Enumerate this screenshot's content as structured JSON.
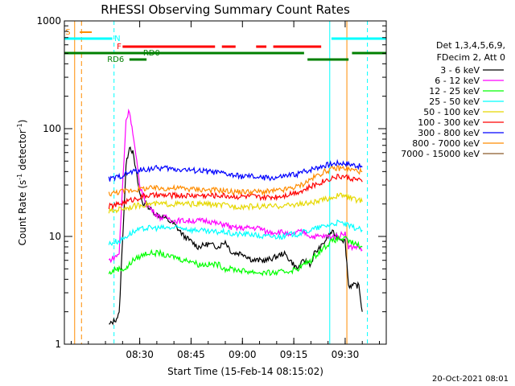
{
  "chart_data": {
    "type": "line",
    "title": "RHESSI Observing Summary Count Rates",
    "xlabel": "Start Time (15-Feb-14 08:15:02)",
    "ylabel_main": "Count Rate (s",
    "ylabel_sup1": "-1",
    "ylabel_mid": " detector",
    "ylabel_sup2": "-1",
    "ylabel_end": ")",
    "yscale": "log",
    "ylim": [
      1,
      1000
    ],
    "xlim_minutes": [
      8.0,
      102.0
    ],
    "x_ticks": [
      {
        "label": "08:30",
        "minutes": 30
      },
      {
        "label": "08:45",
        "minutes": 45
      },
      {
        "label": "09:00",
        "minutes": 60
      },
      {
        "label": "09:15",
        "minutes": 75
      },
      {
        "label": "09:30",
        "minutes": 90
      },
      {
        "label": "09:45",
        "minutes": 105
      }
    ],
    "y_ticks": [
      {
        "label": "1000",
        "value": 1000
      },
      {
        "label": "100",
        "value": 100
      },
      {
        "label": "10",
        "value": 10
      },
      {
        "label": "1",
        "value": 1
      }
    ],
    "legend_header": [
      "Det 1,3,4,5,6,9,",
      "FDecim 2, Att 0"
    ],
    "timestamp": "20-Oct-2021 08:01",
    "flags": {
      "S_label": "S",
      "N_label": "N",
      "F_label": "F",
      "RD0_label": "RD0",
      "RD6_label": "RD6"
    },
    "series": [
      {
        "name": "3 - 6 keV",
        "color": "#000000",
        "x": [
          21,
          23,
          24,
          26,
          27,
          28,
          30,
          31,
          32,
          33,
          35,
          37,
          40,
          43,
          45,
          47,
          50,
          53,
          55,
          57,
          60,
          63,
          65,
          67,
          70,
          72,
          74,
          76,
          78,
          80,
          81,
          83,
          85,
          86,
          88,
          90,
          91,
          92,
          93,
          94,
          95
        ],
        "y": [
          1.5,
          1.7,
          1.9,
          45,
          70,
          60,
          25,
          20,
          20,
          18,
          16,
          15,
          13,
          10,
          9,
          8,
          8.5,
          8,
          9,
          7,
          7,
          6,
          6,
          6,
          6.5,
          7,
          6,
          5,
          6,
          5.5,
          7,
          8,
          10,
          11,
          10,
          9,
          3.5,
          3.5,
          3.5,
          3.5,
          2
        ]
      },
      {
        "name": "6 - 12 keV",
        "color": "#ff00ff",
        "x": [
          21,
          23,
          24,
          26,
          27,
          28,
          30,
          32,
          34,
          36,
          38,
          40,
          42,
          45,
          47,
          50,
          53,
          55,
          57,
          60,
          63,
          65,
          67,
          70,
          72,
          74,
          76,
          78,
          80,
          82,
          84,
          86,
          88,
          90,
          91,
          92,
          93,
          94,
          95
        ],
        "y": [
          6,
          6.5,
          7,
          120,
          150,
          90,
          30,
          20,
          17,
          15,
          15,
          14,
          14,
          14,
          14,
          14,
          13,
          13,
          12,
          12,
          12,
          12,
          11,
          11,
          11,
          10,
          11,
          11,
          10,
          10,
          10,
          10,
          10,
          11,
          8,
          8,
          8,
          8,
          7.5
        ]
      },
      {
        "name": "12 - 25 keV",
        "color": "#00ff00",
        "x": [
          21,
          23,
          24,
          26,
          27,
          28,
          30,
          32,
          34,
          36,
          38,
          40,
          43,
          45,
          47,
          50,
          53,
          55,
          57,
          60,
          63,
          65,
          67,
          70,
          72,
          74,
          76,
          78,
          80,
          82,
          84,
          86,
          88,
          90,
          91,
          93,
          95
        ],
        "y": [
          4.5,
          5,
          5,
          5,
          5.5,
          6,
          6.5,
          7,
          7,
          7,
          6.5,
          6.5,
          6,
          6,
          5.5,
          5.5,
          5.5,
          5,
          5,
          4.8,
          4.7,
          4.6,
          4.6,
          4.6,
          4.7,
          4.8,
          5,
          5.5,
          6,
          7,
          8,
          9,
          9.5,
          9.5,
          9,
          8.5,
          8
        ]
      },
      {
        "name": "25 - 50 keV",
        "color": "#00ffff",
        "x": [
          21,
          23,
          24,
          26,
          28,
          30,
          32,
          34,
          36,
          38,
          40,
          43,
          45,
          47,
          50,
          53,
          55,
          57,
          60,
          63,
          65,
          67,
          70,
          72,
          74,
          76,
          78,
          80,
          82,
          84,
          86,
          88,
          90,
          91,
          93,
          95
        ],
        "y": [
          8.5,
          9,
          9,
          10,
          11,
          11.5,
          12,
          12,
          12,
          12,
          12,
          12,
          11.5,
          11.5,
          11,
          11,
          11,
          10.5,
          10.5,
          10.5,
          10,
          10,
          10,
          10,
          10.5,
          10.5,
          11,
          11.5,
          12,
          12.5,
          13,
          13.5,
          13,
          12.5,
          12,
          11.5
        ]
      },
      {
        "name": "50 - 100 keV",
        "color": "#e6d800",
        "x": [
          21,
          23,
          24,
          26,
          28,
          30,
          32,
          34,
          36,
          38,
          40,
          43,
          45,
          47,
          50,
          53,
          55,
          57,
          60,
          63,
          65,
          67,
          70,
          72,
          74,
          76,
          78,
          80,
          82,
          84,
          86,
          88,
          90,
          91,
          93,
          95
        ],
        "y": [
          17,
          17.5,
          18,
          18.5,
          19,
          19.5,
          20,
          20,
          20,
          20,
          20,
          20,
          20,
          20,
          20,
          19.5,
          19.5,
          19,
          19,
          19,
          19,
          19,
          19,
          19.5,
          19.5,
          20,
          20,
          20.5,
          21,
          22,
          23,
          24,
          24,
          23,
          22,
          21
        ]
      },
      {
        "name": "100 - 300 keV",
        "color": "#ff0000",
        "x": [
          21,
          23,
          24,
          26,
          28,
          30,
          32,
          34,
          36,
          38,
          40,
          43,
          45,
          47,
          50,
          53,
          55,
          57,
          60,
          63,
          65,
          67,
          70,
          72,
          74,
          76,
          78,
          80,
          82,
          84,
          86,
          88,
          90,
          91,
          93,
          95
        ],
        "y": [
          19,
          19.5,
          20,
          21,
          22,
          23,
          24,
          24,
          24,
          24,
          24,
          24,
          24,
          24,
          24,
          24,
          24,
          23.5,
          23.5,
          23.5,
          23,
          23,
          23.5,
          24,
          25,
          26,
          27,
          29,
          31,
          33,
          35,
          36,
          36,
          35,
          34,
          32
        ]
      },
      {
        "name": "300 - 800 keV",
        "color": "#0000ff",
        "x": [
          21,
          23,
          24,
          26,
          28,
          30,
          32,
          34,
          36,
          38,
          40,
          43,
          45,
          47,
          50,
          53,
          55,
          57,
          60,
          63,
          65,
          67,
          70,
          72,
          74,
          76,
          78,
          80,
          82,
          84,
          86,
          88,
          90,
          91,
          93,
          95
        ],
        "y": [
          34,
          35,
          36,
          38,
          40,
          41,
          42,
          43,
          43,
          43,
          42,
          42,
          41,
          41,
          40,
          39,
          38,
          37,
          36,
          36,
          35,
          35,
          35,
          36,
          37,
          38,
          40,
          42,
          44,
          46,
          47,
          48,
          48,
          47,
          46,
          44
        ]
      },
      {
        "name": "800 - 7000 keV",
        "color": "#ff8c00",
        "x": [
          21,
          23,
          24,
          26,
          28,
          30,
          32,
          34,
          36,
          38,
          40,
          43,
          45,
          47,
          50,
          53,
          55,
          57,
          60,
          63,
          65,
          67,
          70,
          72,
          74,
          76,
          78,
          80,
          82,
          84,
          86,
          88,
          90,
          91,
          93,
          95
        ],
        "y": [
          25,
          25.5,
          26,
          26.5,
          27,
          27.5,
          28,
          28,
          28,
          28,
          28,
          28,
          27.5,
          27.5,
          27,
          27,
          26.5,
          26,
          26,
          26,
          26,
          26,
          26.5,
          27,
          28,
          29,
          31,
          34,
          37,
          40,
          42,
          43,
          43,
          42,
          41,
          40
        ]
      },
      {
        "name": "7000 - 15000 keV",
        "color": "#8b5a2b",
        "x": [],
        "y": []
      }
    ]
  }
}
